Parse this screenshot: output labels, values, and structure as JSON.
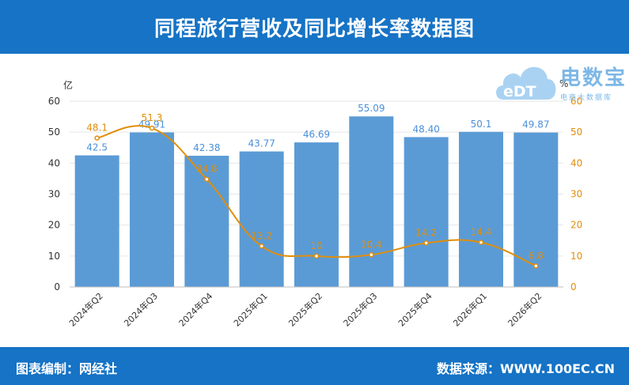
{
  "header": {
    "title": "同程旅行营收及同比增长率数据图"
  },
  "footer": {
    "left": "图表编制：网经社",
    "right": "数据来源：WWW.100EC.CN"
  },
  "logo": {
    "text": "电数宝",
    "subtitle": "电商大数据库",
    "icon_letters": "eDT",
    "icon_name": "cloud-logo-icon"
  },
  "colors": {
    "header_bg": "#1673c5",
    "bar": "#5b9bd5",
    "line": "#e08e0b",
    "axis": "#333333",
    "right_axis": "#e08e0b"
  },
  "chart_data": {
    "type": "bar",
    "categories": [
      "2024年Q2",
      "2024年Q3",
      "2024年Q4",
      "2025年Q1",
      "2025年Q2",
      "2025年Q3",
      "2025年Q4",
      "2026年Q1",
      "2026年Q2"
    ],
    "series": [
      {
        "type": "bar",
        "axis": "left",
        "values": [
          42.5,
          49.91,
          42.38,
          43.77,
          46.69,
          55.09,
          48.4,
          50.1,
          49.87
        ],
        "labels": [
          "42.5",
          "49.91",
          "42.38",
          "43.77",
          "46.69",
          "55.09",
          "48.40",
          "50.1",
          "49.87"
        ]
      },
      {
        "type": "line",
        "axis": "right",
        "values": [
          48.1,
          51.3,
          34.8,
          13.2,
          10,
          10.4,
          14.2,
          14.4,
          6.8
        ],
        "labels": [
          "48.1",
          "51.3",
          "34.8",
          "13.2",
          "10",
          "10.4",
          "14.2",
          "14.4",
          "6.8"
        ]
      }
    ],
    "ylabel_left": "亿",
    "ylabel_right": "%",
    "ylim_left": [
      0,
      60
    ],
    "ylim_right": [
      0,
      60
    ],
    "yticks_left": [
      0,
      10,
      20,
      30,
      40,
      50,
      60
    ],
    "yticks_right": [
      0,
      10,
      20,
      30,
      40,
      50,
      60
    ],
    "grid": true,
    "legend": "none"
  }
}
